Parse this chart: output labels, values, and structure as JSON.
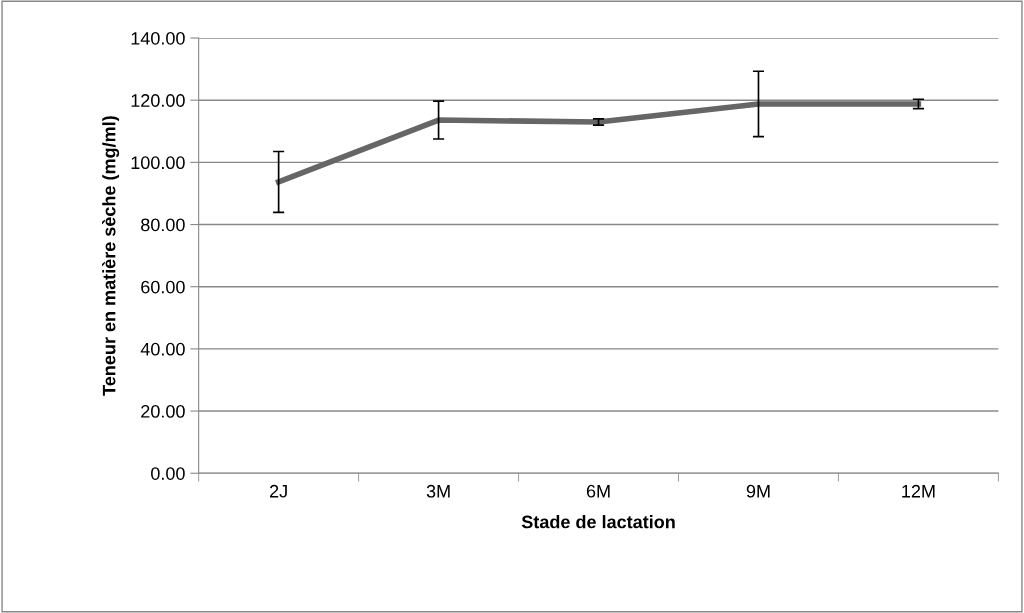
{
  "chart_data": {
    "type": "line",
    "xlabel": "Stade de lactation",
    "ylabel": "Teneur en matière sèche (mg/ml)",
    "categories": [
      "2J",
      "3M",
      "6M",
      "9M",
      "12M"
    ],
    "series": [
      {
        "color": "#666666",
        "values": [
          93.7,
          113.6,
          113.0,
          118.8,
          118.8
        ],
        "errors": [
          9.8,
          6.1,
          1.0,
          10.5,
          1.5
        ]
      }
    ],
    "ylim": [
      0,
      140
    ],
    "yticks": [
      {
        "value": 0,
        "label": "0.00"
      },
      {
        "value": 20,
        "label": "20.00"
      },
      {
        "value": 40,
        "label": "40.00"
      },
      {
        "value": 60,
        "label": "60.00"
      },
      {
        "value": 80,
        "label": "80.00"
      },
      {
        "value": 100,
        "label": "100.00"
      },
      {
        "value": 120,
        "label": "120.00"
      },
      {
        "value": 140,
        "label": "140.00"
      }
    ],
    "grid": "y",
    "legend": false,
    "marker": "none",
    "line_style": "solid"
  }
}
